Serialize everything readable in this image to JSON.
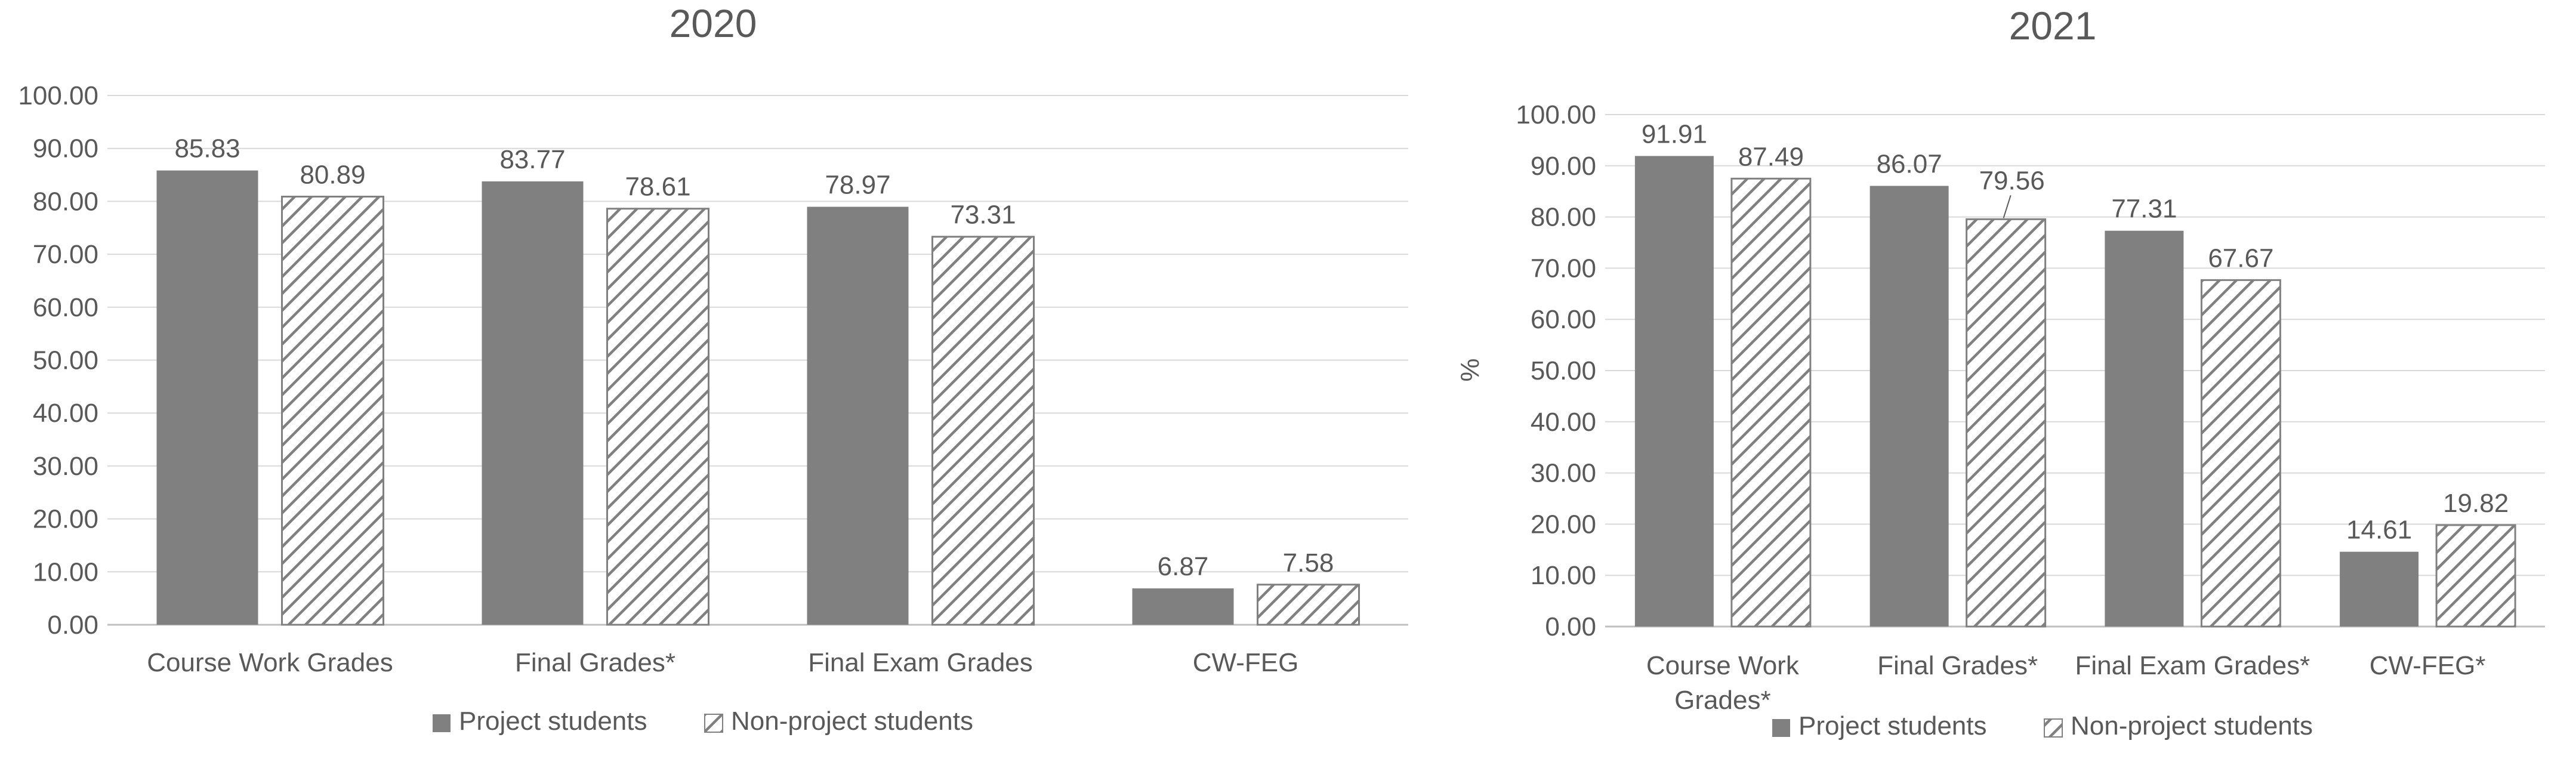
{
  "colors": {
    "project_fill": "#808080",
    "hatch_stroke": "#808080",
    "grid": "#d9d9d9",
    "axis": "#bfbfbf",
    "text": "#595959"
  },
  "chart_data": [
    {
      "type": "bar",
      "title": "2020",
      "xlabel": "",
      "ylabel": "",
      "ylim": [
        0,
        100
      ],
      "yticks": [
        "0.00",
        "10.00",
        "20.00",
        "30.00",
        "40.00",
        "50.00",
        "60.00",
        "70.00",
        "80.00",
        "90.00",
        "100.00"
      ],
      "grid": true,
      "legend_position": "bottom",
      "categories": [
        [
          "Course Work Grades"
        ],
        [
          "Final Grades*"
        ],
        [
          "Final Exam Grades"
        ],
        [
          "CW-FEG"
        ]
      ],
      "series": [
        {
          "name": "Project students",
          "pattern": "solid",
          "values": [
            85.83,
            83.77,
            78.97,
            6.87
          ],
          "labels": [
            "85.83",
            "83.77",
            "78.97",
            "6.87"
          ]
        },
        {
          "name": "Non-project students",
          "pattern": "hatch",
          "values": [
            80.89,
            78.61,
            73.31,
            7.58
          ],
          "labels": [
            "80.89",
            "78.61",
            "73.31",
            "7.58"
          ]
        }
      ]
    },
    {
      "type": "bar",
      "title": "2021",
      "xlabel": "",
      "ylabel": "%",
      "ylim": [
        0,
        100
      ],
      "yticks": [
        "0.00",
        "10.00",
        "20.00",
        "30.00",
        "40.00",
        "50.00",
        "60.00",
        "70.00",
        "80.00",
        "90.00",
        "100.00"
      ],
      "grid": true,
      "legend_position": "bottom",
      "categories": [
        [
          "Course Work",
          "Grades*"
        ],
        [
          "Final Grades*"
        ],
        [
          "Final Exam Grades*"
        ],
        [
          "CW-FEG*"
        ]
      ],
      "series": [
        {
          "name": "Project students",
          "pattern": "solid",
          "values": [
            91.91,
            86.07,
            77.31,
            14.61
          ],
          "labels": [
            "91.91",
            "86.07",
            "77.31",
            "14.61"
          ]
        },
        {
          "name": "Non-project students",
          "pattern": "hatch",
          "values": [
            87.49,
            79.56,
            67.67,
            19.82
          ],
          "labels": [
            "87.49",
            "79.56",
            "67.67",
            "19.82"
          ]
        }
      ]
    }
  ]
}
